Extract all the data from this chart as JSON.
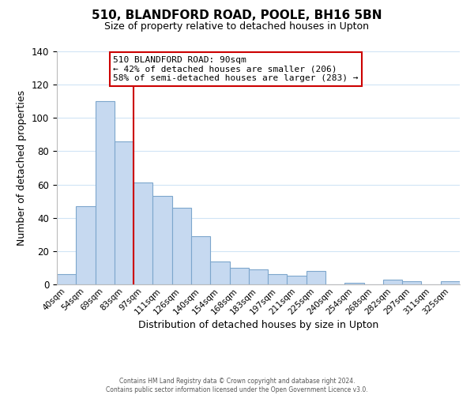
{
  "title": "510, BLANDFORD ROAD, POOLE, BH16 5BN",
  "subtitle": "Size of property relative to detached houses in Upton",
  "xlabel": "Distribution of detached houses by size in Upton",
  "ylabel": "Number of detached properties",
  "bar_labels": [
    "40sqm",
    "54sqm",
    "69sqm",
    "83sqm",
    "97sqm",
    "111sqm",
    "126sqm",
    "140sqm",
    "154sqm",
    "168sqm",
    "183sqm",
    "197sqm",
    "211sqm",
    "225sqm",
    "240sqm",
    "254sqm",
    "268sqm",
    "282sqm",
    "297sqm",
    "311sqm",
    "325sqm"
  ],
  "bar_values": [
    6,
    47,
    110,
    86,
    61,
    53,
    46,
    29,
    14,
    10,
    9,
    6,
    5,
    8,
    0,
    1,
    0,
    3,
    2,
    0,
    2
  ],
  "bar_color": "#c6d9f0",
  "bar_edge_color": "#7da6cc",
  "vline_x": 3.5,
  "vline_color": "#cc0000",
  "ylim": [
    0,
    140
  ],
  "yticks": [
    0,
    20,
    40,
    60,
    80,
    100,
    120,
    140
  ],
  "annotation_title": "510 BLANDFORD ROAD: 90sqm",
  "annotation_line1": "← 42% of detached houses are smaller (206)",
  "annotation_line2": "58% of semi-detached houses are larger (283) →",
  "annotation_box_color": "#ffffff",
  "annotation_box_edge": "#cc0000",
  "footer1": "Contains HM Land Registry data © Crown copyright and database right 2024.",
  "footer2": "Contains public sector information licensed under the Open Government Licence v3.0.",
  "background_color": "#ffffff",
  "grid_color": "#d0e4f5"
}
